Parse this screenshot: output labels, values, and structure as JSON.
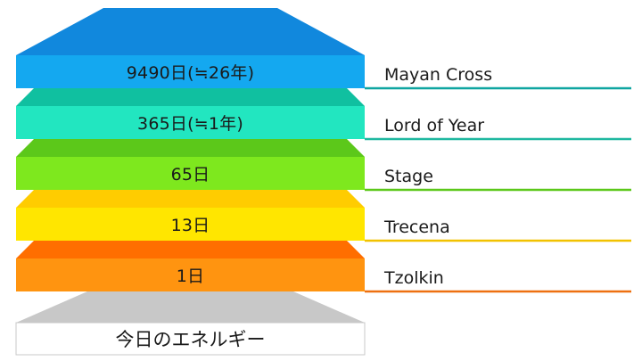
{
  "layers": [
    {
      "value": "9490日(≒26年)",
      "name": "Mayan Cross",
      "face": "#14a8f0",
      "top": "#1188dd",
      "line": "#0ea5a0"
    },
    {
      "value": "365日(≒1年)",
      "name": "Lord of Year",
      "face": "#22e6c0",
      "top": "#10c0a0",
      "line": "#1fb8a0"
    },
    {
      "value": "65日",
      "name": "Stage",
      "face": "#7ee81e",
      "top": "#5cc81a",
      "line": "#5cc81a"
    },
    {
      "value": "13日",
      "name": "Trecena",
      "face": "#ffe600",
      "top": "#ffcc00",
      "line": "#f2c200"
    },
    {
      "value": "1日",
      "name": "Tzolkin",
      "face": "#ff9410",
      "top": "#ff6e00",
      "line": "#ee7010"
    }
  ],
  "base": {
    "label": "今日のエネルギー",
    "top_color": "#c8c8c8",
    "face_color": "#ffffff",
    "border_color": "#c8c8c8"
  }
}
